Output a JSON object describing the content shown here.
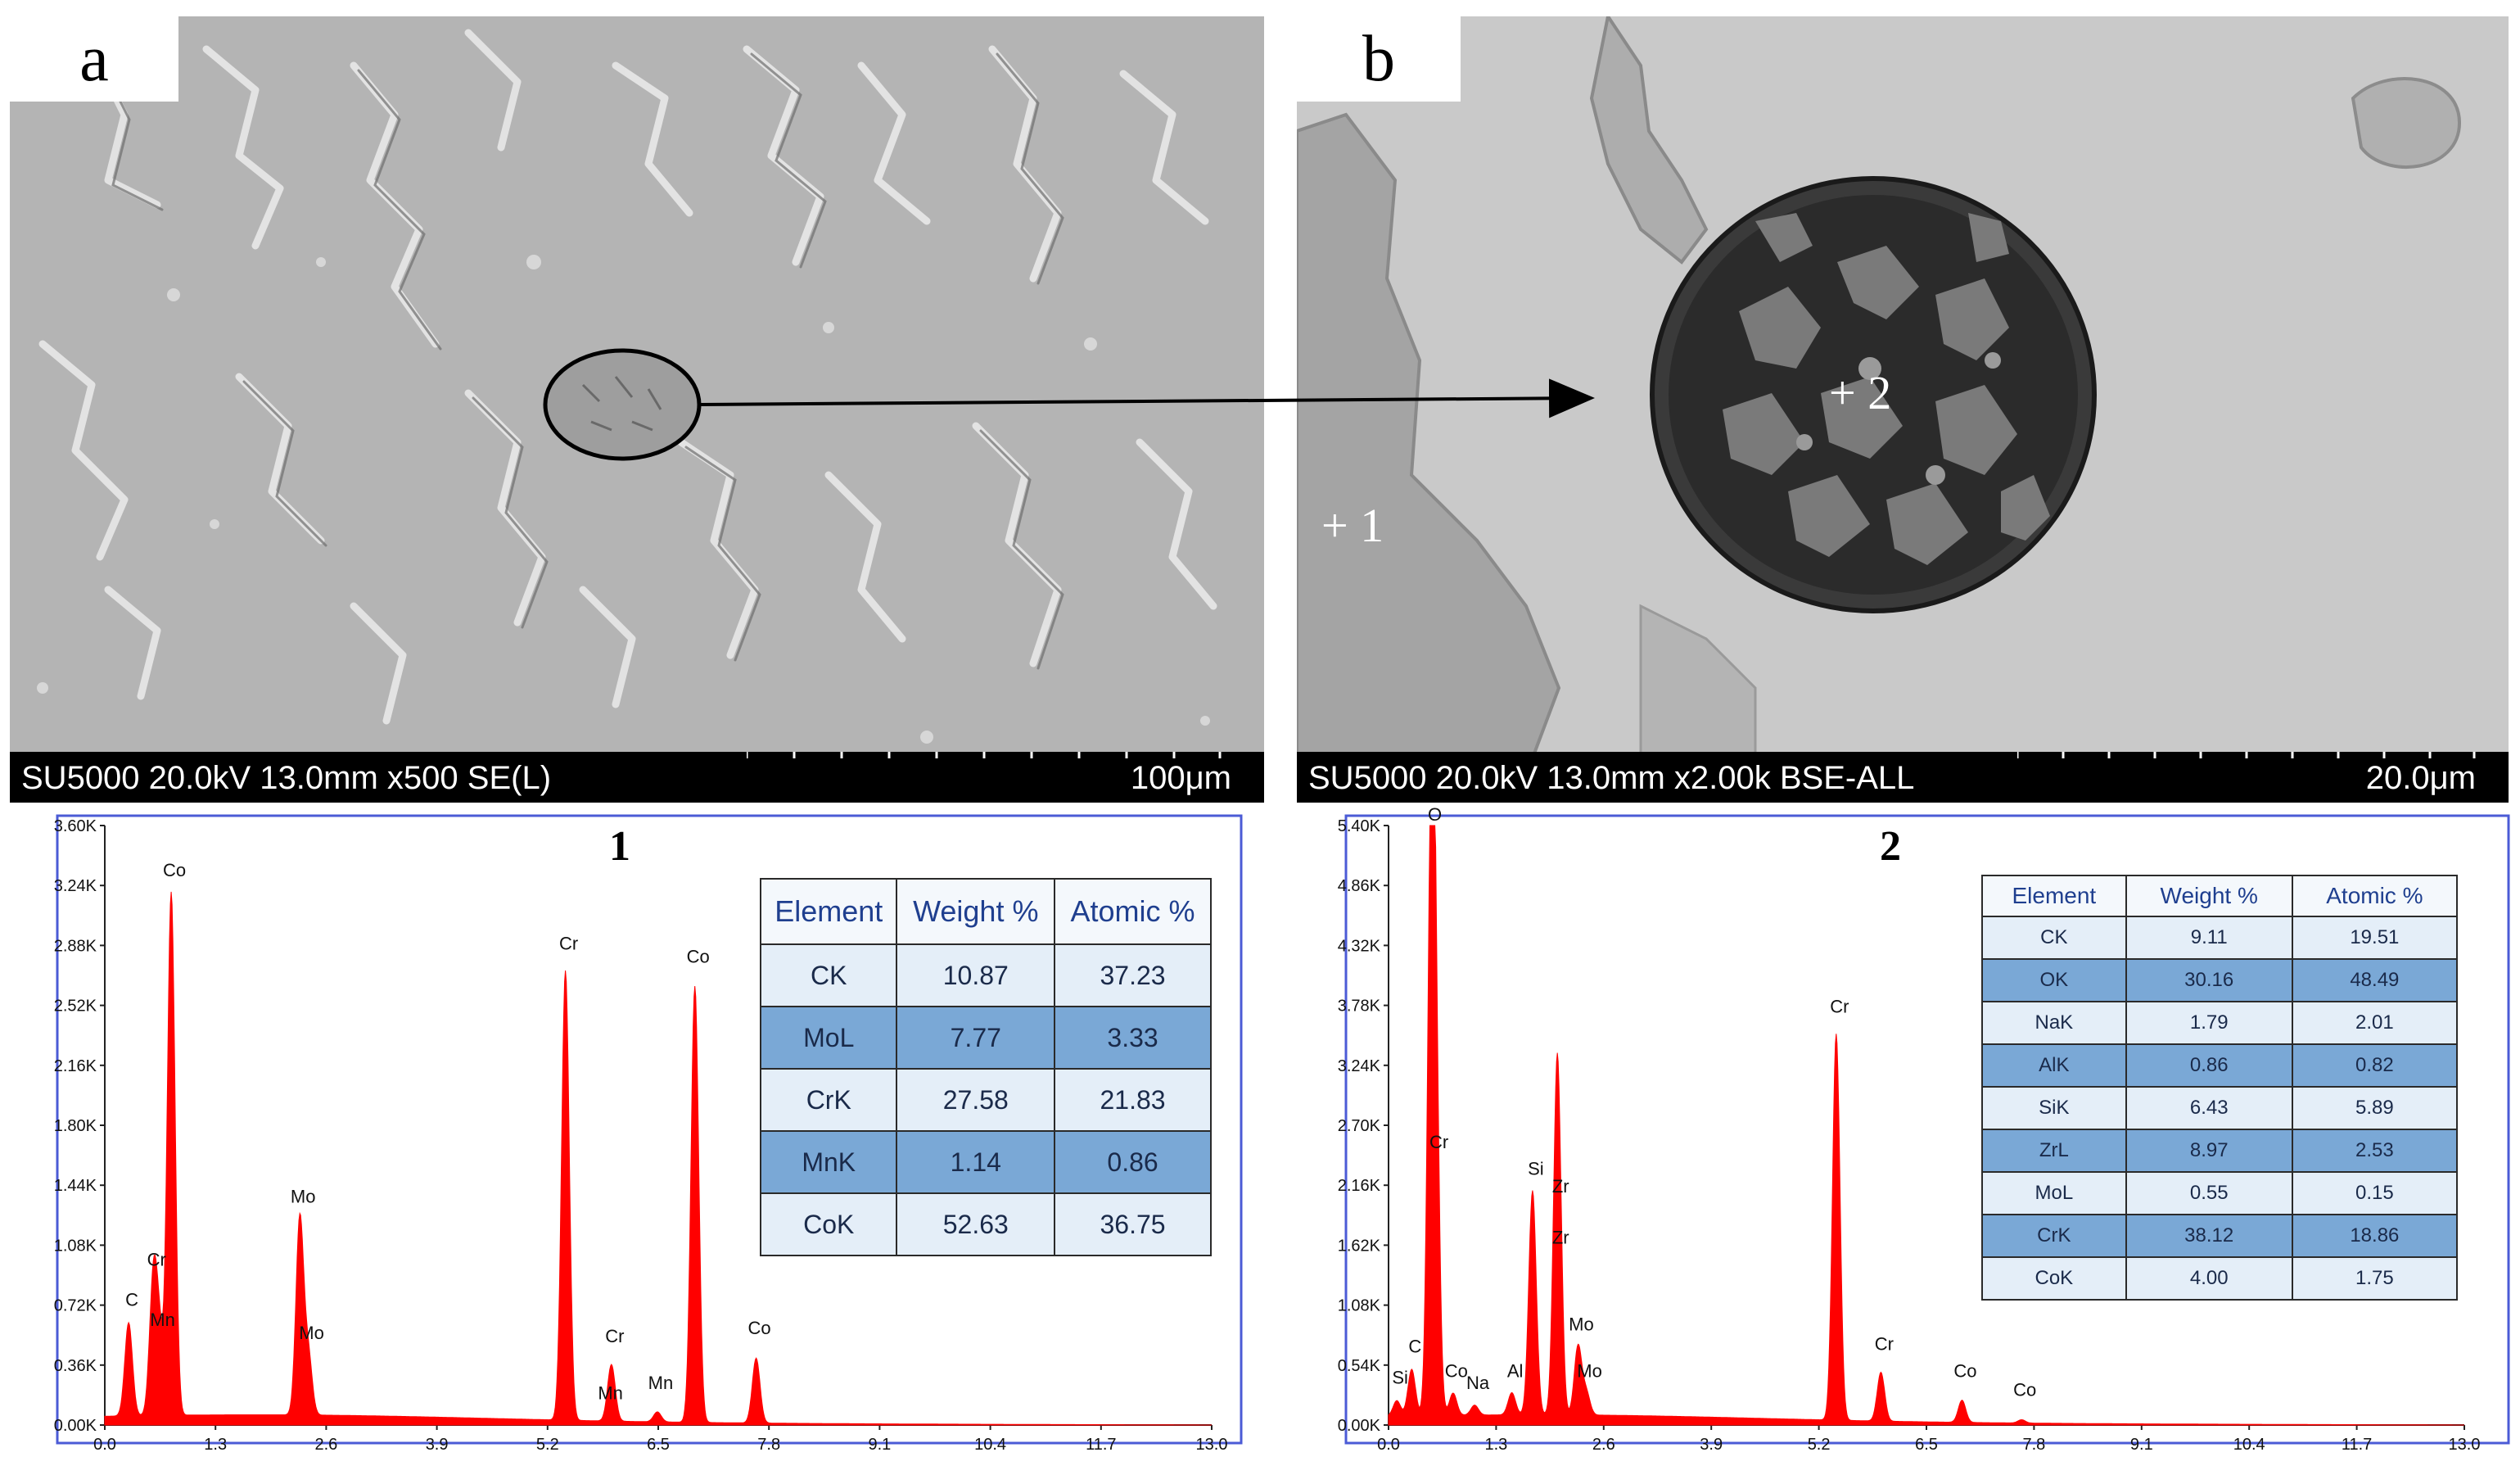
{
  "panels": {
    "a": {
      "letter": "a",
      "info": "SU5000 20.0kV 13.0mm x500 SE(L)",
      "scale": "100μm"
    },
    "b": {
      "letter": "b",
      "info": "SU5000 20.0kV 13.0mm x2.00k BSE-ALL",
      "scale": "20.0μm",
      "point1": "+ 1",
      "point2": "+ 2"
    }
  },
  "colors": {
    "spectrum": "#ff0000",
    "frame": "#4b5bd6",
    "table_dark": "#7aa8d6",
    "table_light": "#e4eef8"
  },
  "chart_data": [
    {
      "type": "area",
      "title": "1",
      "x_ticks": [
        "0.0",
        "1.3",
        "2.6",
        "3.9",
        "5.2",
        "6.5",
        "7.8",
        "9.1",
        "10.4",
        "11.7",
        "13.0"
      ],
      "y_ticks": [
        "0.00K",
        "0.36K",
        "0.72K",
        "1.08K",
        "1.44K",
        "1.80K",
        "2.16K",
        "2.52K",
        "2.88K",
        "3.24K",
        "3.60K"
      ],
      "xlim": [
        0,
        13.0
      ],
      "ylim": [
        0,
        3600
      ],
      "peaks": [
        {
          "label": "C",
          "x": 0.28,
          "y": 560
        },
        {
          "label": "Cr",
          "x": 0.57,
          "y": 800
        },
        {
          "label": "Mn",
          "x": 0.64,
          "y": 440
        },
        {
          "label": "Co",
          "x": 0.78,
          "y": 3140
        },
        {
          "label": "Mo",
          "x": 2.29,
          "y": 1180
        },
        {
          "label": "Mo",
          "x": 2.39,
          "y": 360
        },
        {
          "label": "Cr",
          "x": 5.41,
          "y": 2700
        },
        {
          "label": "Cr",
          "x": 5.95,
          "y": 340
        },
        {
          "label": "Mn",
          "x": 5.9,
          "y": 0
        },
        {
          "label": "Mn",
          "x": 6.49,
          "y": 60
        },
        {
          "label": "Co",
          "x": 6.93,
          "y": 2620
        },
        {
          "label": "Co",
          "x": 7.65,
          "y": 390
        }
      ],
      "table": {
        "headers": [
          "Element",
          "Weight %",
          "Atomic %"
        ],
        "rows": [
          [
            "CK",
            "10.87",
            "37.23"
          ],
          [
            "MoL",
            "7.77",
            "3.33"
          ],
          [
            "CrK",
            "27.58",
            "21.83"
          ],
          [
            "MnK",
            "1.14",
            "0.86"
          ],
          [
            "CoK",
            "52.63",
            "36.75"
          ]
        ]
      }
    },
    {
      "type": "area",
      "title": "2",
      "x_ticks": [
        "0.0",
        "1.3",
        "2.6",
        "3.9",
        "5.2",
        "6.5",
        "7.8",
        "9.1",
        "10.4",
        "11.7",
        "13.0"
      ],
      "y_ticks": [
        "0.00K",
        "0.54K",
        "1.08K",
        "1.62K",
        "2.16K",
        "2.70K",
        "3.24K",
        "3.78K",
        "4.32K",
        "4.86K",
        "5.40K"
      ],
      "xlim": [
        0,
        13.0
      ],
      "ylim": [
        0,
        5400
      ],
      "peaks": [
        {
          "label": "Si",
          "x": 0.1,
          "y": 140
        },
        {
          "label": "C",
          "x": 0.28,
          "y": 420
        },
        {
          "label": "O",
          "x": 0.52,
          "y": 5300
        },
        {
          "label": "Cr",
          "x": 0.57,
          "y": 2260
        },
        {
          "label": "Co",
          "x": 0.78,
          "y": 200
        },
        {
          "label": "Na",
          "x": 1.04,
          "y": 90
        },
        {
          "label": "Al",
          "x": 1.49,
          "y": 200
        },
        {
          "label": "Si",
          "x": 1.74,
          "y": 2020
        },
        {
          "label": "Zr",
          "x": 2.04,
          "y": 1860
        },
        {
          "label": "Zr",
          "x": 2.04,
          "y": 1400
        },
        {
          "label": "Mo",
          "x": 2.29,
          "y": 620
        },
        {
          "label": "Mo",
          "x": 2.39,
          "y": 200
        },
        {
          "label": "Cr",
          "x": 5.41,
          "y": 3480
        },
        {
          "label": "Cr",
          "x": 5.95,
          "y": 440
        },
        {
          "label": "Co",
          "x": 6.93,
          "y": 200
        },
        {
          "label": "Co",
          "x": 7.65,
          "y": 30
        }
      ],
      "table": {
        "headers": [
          "Element",
          "Weight %",
          "Atomic %"
        ],
        "rows": [
          [
            "CK",
            "9.11",
            "19.51"
          ],
          [
            "OK",
            "30.16",
            "48.49"
          ],
          [
            "NaK",
            "1.79",
            "2.01"
          ],
          [
            "AlK",
            "0.86",
            "0.82"
          ],
          [
            "SiK",
            "6.43",
            "5.89"
          ],
          [
            "ZrL",
            "8.97",
            "2.53"
          ],
          [
            "MoL",
            "0.55",
            "0.15"
          ],
          [
            "CrK",
            "38.12",
            "18.86"
          ],
          [
            "CoK",
            "4.00",
            "1.75"
          ]
        ]
      }
    }
  ]
}
